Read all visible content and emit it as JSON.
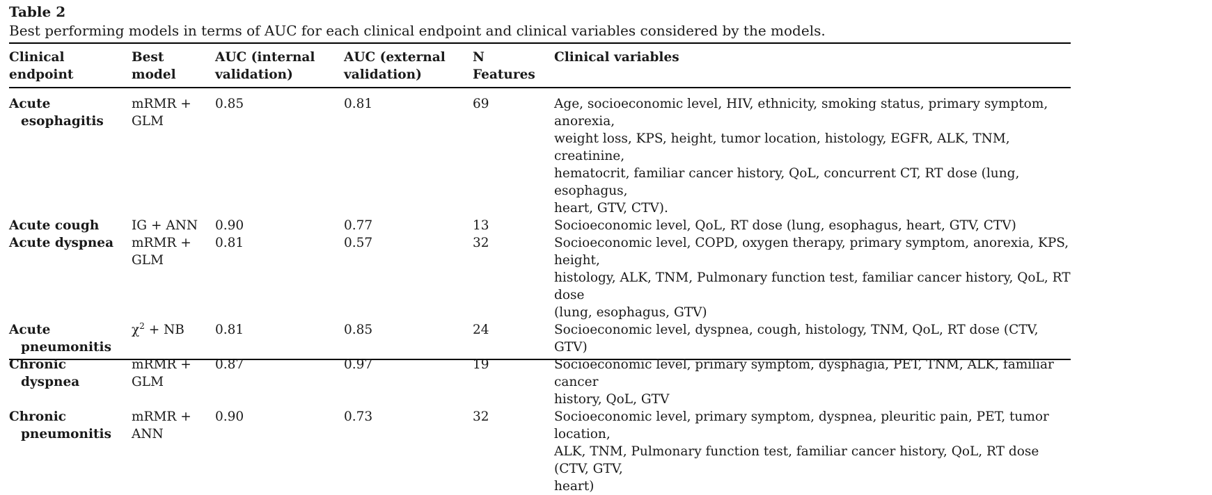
{
  "table": {
    "label": "Table 2",
    "caption": "Best performing models in terms of AUC for each clinical endpoint and clinical variables considered by the models.",
    "headers": {
      "endpoint": [
        "Clinical",
        "endpoint"
      ],
      "model": [
        "Best",
        "model"
      ],
      "auc_internal": [
        "AUC (internal",
        "validation)"
      ],
      "auc_external": [
        "AUC (external",
        "validation)"
      ],
      "n_features": [
        "N",
        "Features"
      ],
      "variables": [
        "Clinical variables"
      ]
    },
    "rows": [
      {
        "endpoint": [
          "Acute",
          "esophagitis"
        ],
        "model": [
          "mRMR +",
          "GLM"
        ],
        "auc_internal": "0.85",
        "auc_external": "0.81",
        "n_features": "69",
        "variables": [
          "Age, socioeconomic level, HIV, ethnicity, smoking status, primary symptom, anorexia,",
          "weight loss, KPS, height, tumor location, histology, EGFR, ALK, TNM, creatinine,",
          "hematocrit, familiar cancer history, QoL, concurrent CT, RT dose (lung, esophagus,",
          "heart, GTV, CTV)."
        ]
      },
      {
        "endpoint": [
          "Acute cough"
        ],
        "model": [
          "IG + ANN"
        ],
        "auc_internal": "0.90",
        "auc_external": "0.77",
        "n_features": "13",
        "variables": [
          "Socioeconomic level, QoL, RT dose (lung, esophagus, heart, GTV, CTV)"
        ]
      },
      {
        "endpoint": [
          "Acute dyspnea"
        ],
        "model": [
          "mRMR +",
          "GLM"
        ],
        "auc_internal": "0.81",
        "auc_external": "0.57",
        "n_features": "32",
        "variables": [
          "Socioeconomic level, COPD, oxygen therapy, primary symptom, anorexia, KPS, height,",
          "histology, ALK, TNM, Pulmonary function test, familiar cancer history, QoL, RT dose",
          "(lung, esophagus, GTV)"
        ]
      },
      {
        "endpoint": [
          "Acute",
          "pneumonitis"
        ],
        "model_chi": {
          "base": "χ",
          "sup": "2",
          "rest": " + NB"
        },
        "auc_internal": "0.81",
        "auc_external": "0.85",
        "n_features": "24",
        "variables": [
          "Socioeconomic level, dyspnea, cough, histology, TNM, QoL, RT dose (CTV, GTV)"
        ]
      },
      {
        "endpoint": [
          "Chronic",
          "dyspnea"
        ],
        "model": [
          "mRMR +",
          "GLM"
        ],
        "auc_internal": "0.87",
        "auc_external": "0.97",
        "n_features": "19",
        "variables": [
          "Socioeconomic level, primary symptom, dysphagia, PET, TNM, ALK, familiar cancer",
          "history, QoL, GTV"
        ]
      },
      {
        "endpoint": [
          "Chronic",
          "pneumonitis"
        ],
        "model": [
          "mRMR +",
          "ANN"
        ],
        "auc_internal": "0.90",
        "auc_external": "0.73",
        "n_features": "32",
        "variables": [
          "Socioeconomic level, primary symptom, dyspnea, pleuritic pain, PET, tumor location,",
          "ALK, TNM, Pulmonary function test, familiar cancer history, QoL, RT dose (CTV, GTV,",
          "heart)"
        ]
      }
    ]
  }
}
